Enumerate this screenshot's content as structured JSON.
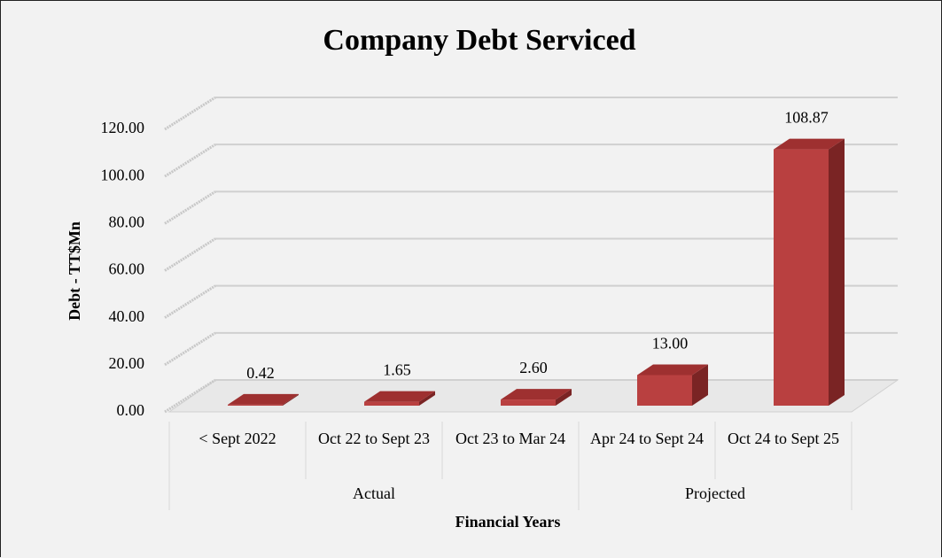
{
  "chart_data": {
    "type": "bar3d",
    "title": "Company Debt Serviced",
    "y_label": "Debt - TT$Mn",
    "x_label": "Financial Years",
    "categories": [
      "< Sept 2022",
      "Oct 22 to Sept 23",
      "Oct 23 to Mar 24",
      "Apr 24 to Sept 24",
      "Oct 24 to Sept 25"
    ],
    "groups": [
      {
        "name": "Actual",
        "span": 3
      },
      {
        "name": "Projected",
        "span": 2
      }
    ],
    "values": [
      0.42,
      1.65,
      2.6,
      13.0,
      108.87
    ],
    "value_labels": [
      "0.42",
      "1.65",
      "2.60",
      "13.00",
      "108.87"
    ],
    "color": "#b94040",
    "ylim": [
      0,
      120
    ],
    "yticks": [
      {
        "value": 0,
        "label": "0.00"
      },
      {
        "value": 20,
        "label": "20.00"
      },
      {
        "value": 40,
        "label": "40.00"
      },
      {
        "value": 60,
        "label": "60.00"
      },
      {
        "value": 80,
        "label": "80.00"
      },
      {
        "value": 100,
        "label": "100.00"
      },
      {
        "value": 120,
        "label": "120.00"
      }
    ],
    "grid": true
  }
}
